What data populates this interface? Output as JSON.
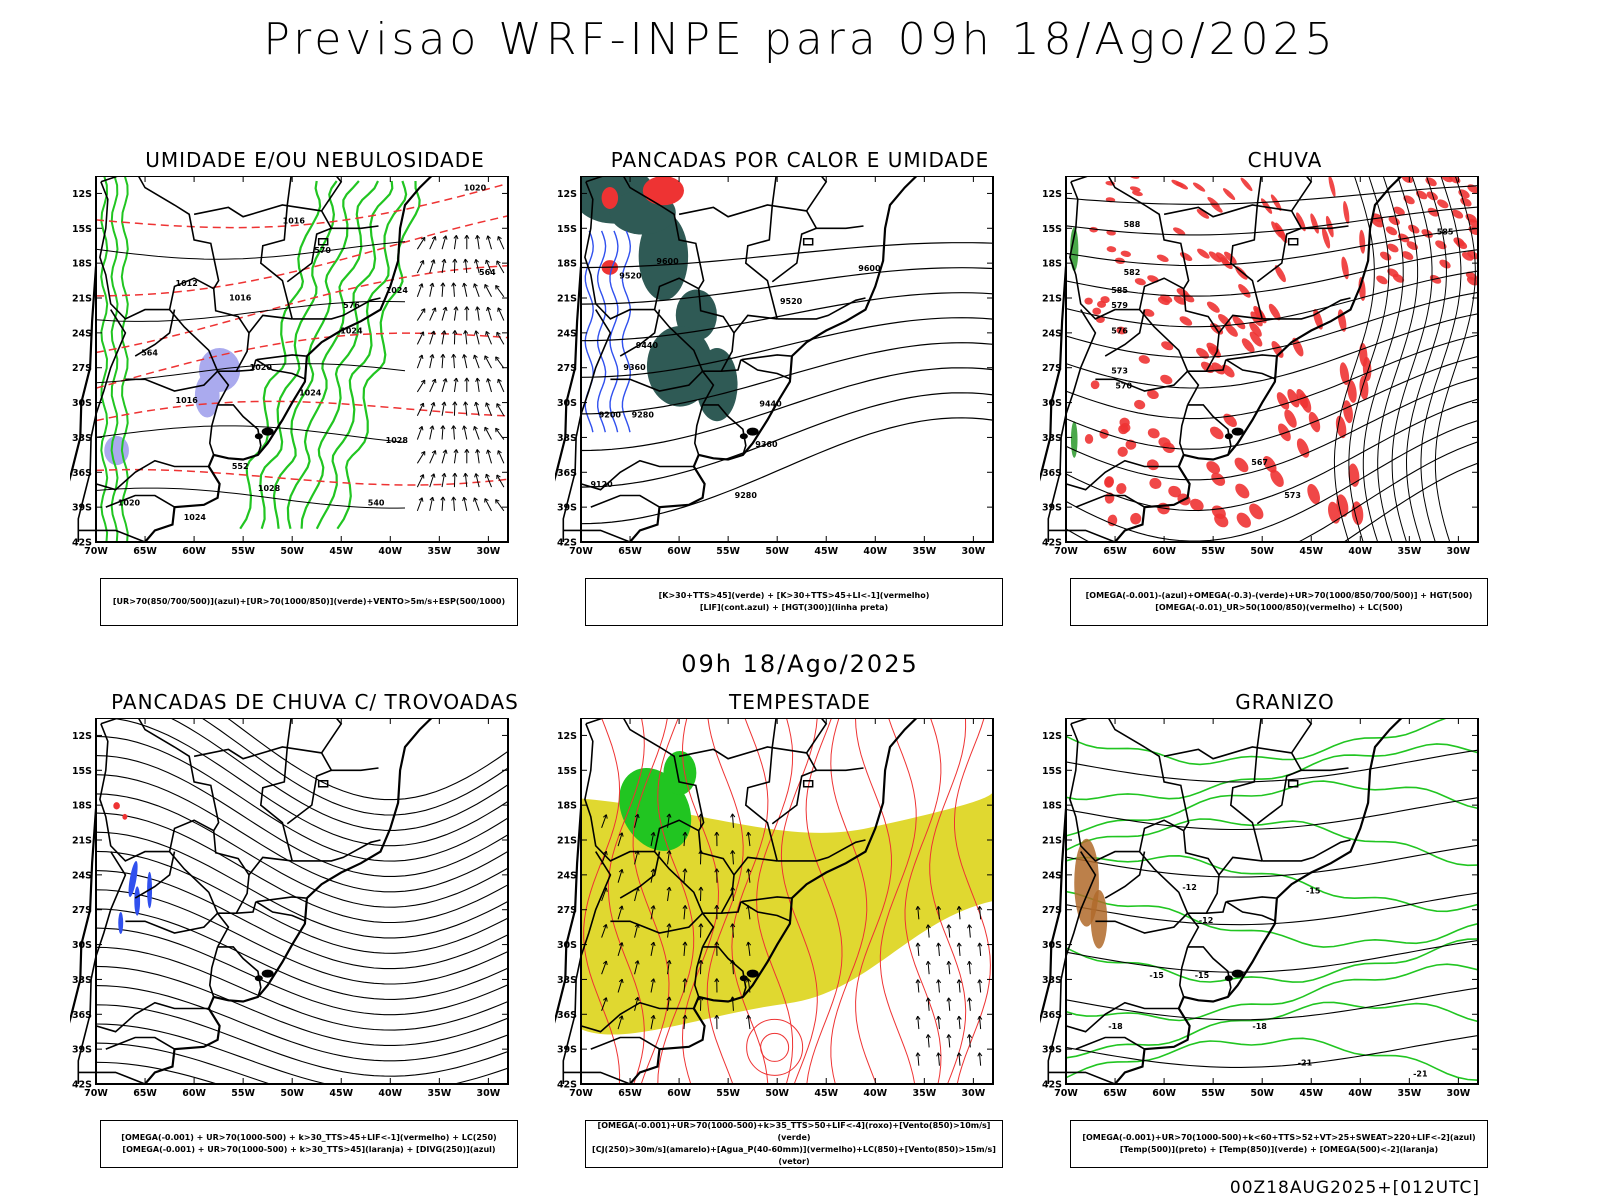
{
  "header": {
    "title": "Previsao WRF-INPE  para 09h 18/Ago/2025"
  },
  "mid_label": "09h 18/Ago/2025",
  "footer": "00Z18AUG2025+[012UTC]",
  "axes": {
    "lat_labels": [
      "12S",
      "15S",
      "18S",
      "21S",
      "24S",
      "27S",
      "30S",
      "33S",
      "36S",
      "39S",
      "42S"
    ],
    "lon_labels": [
      "70W",
      "65W",
      "60W",
      "55W",
      "50W",
      "45W",
      "40W",
      "35W",
      "30W"
    ]
  },
  "panels": [
    {
      "id": "umidade",
      "title": "UMIDADE E/OU NEBULOSIDADE",
      "legend": [
        "[UR>70(850/700/500)](azul)+[UR>70(1000/850)](verde)+VENTO>5m/s+ESP(500/1000)"
      ],
      "contour_labels": [
        "1020",
        "1016",
        "1012",
        "1016",
        "1024",
        "1024",
        "1020",
        "1016",
        "1024",
        "1028",
        "1028",
        "1024",
        "1020",
        "564",
        "570",
        "576",
        "564",
        "552",
        "540"
      ]
    },
    {
      "id": "pancadas-calor",
      "title": "PANCADAS POR CALOR E UMIDADE",
      "legend": [
        "[K>30+TTS>45](verde) + [K>30+TTS>45+LI<-1](vermelho)",
        "[LIF](cont.azul) + [HGT(300)](linha preta)"
      ],
      "contour_labels": [
        "9600",
        "9520",
        "9600",
        "9440",
        "9360",
        "9280",
        "9200",
        "9120",
        "9520",
        "9440",
        "9360",
        "9280"
      ]
    },
    {
      "id": "chuva",
      "title": "CHUVA",
      "legend": [
        "[OMEGA(-0.001)-(azul)+OMEGA(-0.3)-(verde)+UR>70(1000/850/700/500)] + HGT(500)",
        "[OMEGA(-0.01)_UR>50(1000/850)(vermelho) + LC(500)"
      ],
      "contour_labels": [
        "588",
        "582",
        "585",
        "579",
        "576",
        "573",
        "570",
        "567",
        "573",
        "585"
      ]
    },
    {
      "id": "pancadas-trovoadas",
      "title": "PANCADAS DE CHUVA C/ TROVOADAS",
      "legend": [
        "[OMEGA(-0.001) + UR>70(1000-500) + k>30_TTS>45+LIF<-1](vermelho) + LC(250)",
        "[OMEGA(-0.001) + UR>70(1000-500) + k>30_TTS>45](laranja) + [DIVG(250)](azul)"
      ],
      "contour_labels": []
    },
    {
      "id": "tempestade",
      "title": "TEMPESTADE",
      "legend": [
        "[OMEGA(-0.001)+UR>70(1000-500)+k>35_TTS>50+LIF<-4](roxo)+[Vento(850)>10m/s](verde)",
        "[CJ(250)>30m/s](amarelo)+[Agua_P(40-60mm)](vermelho)+LC(850)+[Vento(850)>15m/s](vetor)"
      ],
      "contour_labels": []
    },
    {
      "id": "granizo",
      "title": "GRANIZO",
      "legend": [
        "[OMEGA(-0.001)+UR>70(1000-500)+k<60+TTS>52+VT>25+SWEAT>220+LIF<-2](azul)",
        "[Temp(500)](preto) + [Temp(850)](verde) + [OMEGA(500)<-2](laranja)"
      ],
      "contour_labels": [
        "-12",
        "-12",
        "-15",
        "-15",
        "-15",
        "-18",
        "-18",
        "-21",
        "-21"
      ]
    }
  ],
  "colors": {
    "map_line": "#000000",
    "moist_green": "#21c521",
    "moist_blue": "#aaaaee",
    "thickness_red": "#ee3333",
    "unstable_teal": "#2f5a55",
    "lif_blue": "#3050ee",
    "rain_red": "#ee3333",
    "jet_yellow": "#e0d830",
    "hail_brown": "#b06a2a"
  }
}
